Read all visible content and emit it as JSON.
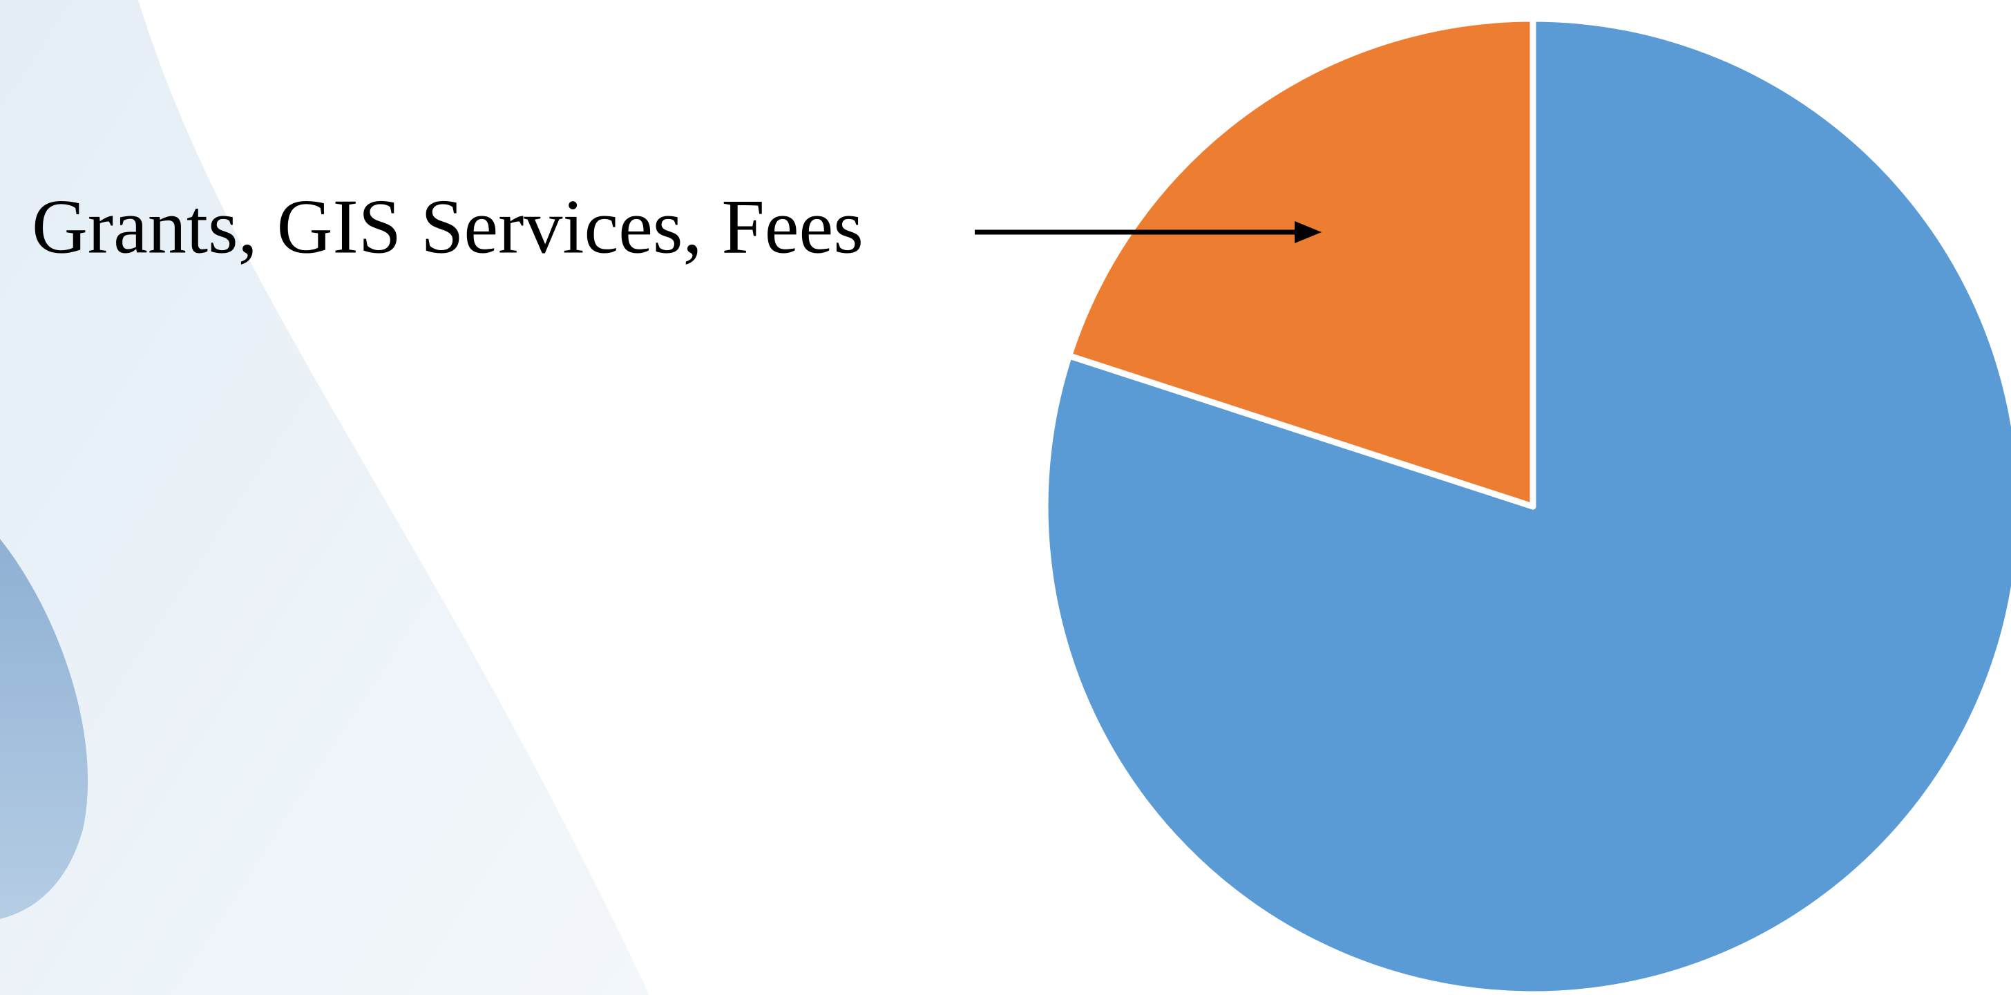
{
  "chart_data": {
    "type": "pie",
    "categories": [
      null,
      "Grants, GIS Services, Fees"
    ],
    "values": [
      80,
      20
    ],
    "colors": [
      "#5b9bd5",
      "#ed7d31"
    ]
  }
}
